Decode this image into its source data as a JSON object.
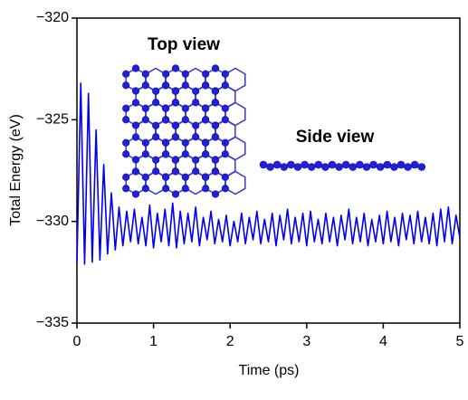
{
  "chart_data": {
    "type": "line",
    "xlabel": "Time (ps)",
    "ylabel": "Total Energy (eV)",
    "annotations": [
      "Top view",
      "Side view"
    ],
    "color": "#0000ee",
    "x": [
      0,
      0.05,
      0.1,
      0.15,
      0.2,
      0.25,
      0.3,
      0.35,
      0.4,
      0.45,
      0.5,
      0.55,
      0.6,
      0.65,
      0.7,
      0.75,
      0.8,
      0.85,
      0.9,
      0.95,
      1,
      1.05,
      1.1,
      1.15,
      1.2,
      1.25,
      1.3,
      1.35,
      1.4,
      1.45,
      1.5,
      1.55,
      1.6,
      1.65,
      1.7,
      1.75,
      1.8,
      1.85,
      1.9,
      1.95,
      2,
      2.05,
      2.1,
      2.15,
      2.2,
      2.25,
      2.3,
      2.35,
      2.4,
      2.45,
      2.5,
      2.55,
      2.6,
      2.65,
      2.7,
      2.75,
      2.8,
      2.85,
      2.9,
      2.95,
      3,
      3.05,
      3.1,
      3.15,
      3.2,
      3.25,
      3.3,
      3.35,
      3.4,
      3.45,
      3.5,
      3.55,
      3.6,
      3.65,
      3.7,
      3.75,
      3.8,
      3.85,
      3.9,
      3.95,
      4,
      4.05,
      4.1,
      4.15,
      4.2,
      4.25,
      4.3,
      4.35,
      4.4,
      4.45,
      4.5,
      4.55,
      4.6,
      4.65,
      4.7,
      4.75,
      4.8,
      4.85,
      4.9,
      4.95,
      5
    ],
    "values": [
      -332.0,
      -323.2,
      -332.1,
      -323.7,
      -332.0,
      -325.5,
      -331.9,
      -327.2,
      -331.6,
      -328.6,
      -331.4,
      -329.3,
      -331.2,
      -329.5,
      -331.0,
      -329.4,
      -331.1,
      -329.8,
      -331.2,
      -329.2,
      -331.3,
      -329.6,
      -331.0,
      -329.4,
      -331.2,
      -329.1,
      -331.3,
      -329.5,
      -331.1,
      -329.6,
      -331.0,
      -329.3,
      -331.2,
      -329.8,
      -330.9,
      -329.5,
      -331.1,
      -329.9,
      -331.0,
      -329.7,
      -331.2,
      -330.0,
      -331.0,
      -329.6,
      -331.1,
      -329.8,
      -330.9,
      -329.5,
      -331.1,
      -329.9,
      -331.0,
      -329.6,
      -331.2,
      -329.7,
      -330.9,
      -329.4,
      -331.1,
      -329.8,
      -331.0,
      -329.6,
      -331.2,
      -329.5,
      -331.0,
      -329.9,
      -331.1,
      -329.6,
      -331.0,
      -329.8,
      -331.2,
      -329.7,
      -330.9,
      -329.4,
      -331.1,
      -329.8,
      -331.0,
      -329.6,
      -331.2,
      -329.9,
      -331.0,
      -329.7,
      -331.1,
      -329.5,
      -331.0,
      -329.8,
      -331.2,
      -329.6,
      -330.9,
      -329.7,
      -331.1,
      -329.5,
      -331.0,
      -329.8,
      -331.1,
      -329.6,
      -331.2,
      -329.4,
      -331.0,
      -329.3,
      -331.1,
      -329.7,
      -330.8
    ],
    "xlim": [
      0,
      5
    ],
    "xticks": [
      0,
      1,
      2,
      3,
      4,
      5
    ],
    "ylim": [
      -335,
      -320
    ],
    "yticks": [
      {
        "value": -335,
        "label": "−335"
      },
      {
        "value": -330,
        "label": "−330"
      },
      {
        "value": -325,
        "label": "−325"
      },
      {
        "value": -320,
        "label": "−320"
      }
    ]
  }
}
